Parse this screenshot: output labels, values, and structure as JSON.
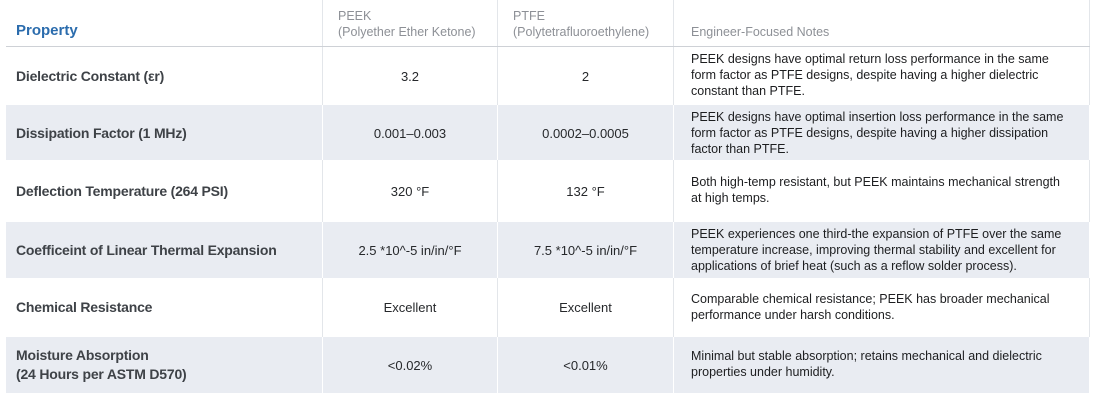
{
  "colors": {
    "accent_blue": "#2b6cad",
    "stripe_background": "#e9ecf2",
    "divider_gray": "#e3e6ea",
    "column_header_gray": "#8d9096"
  },
  "chart_data": {
    "type": "table",
    "columns": [
      {
        "label": "Property",
        "sublabel": ""
      },
      {
        "label": "PEEK",
        "sublabel": "(Polyether Ether Ketone)"
      },
      {
        "label": "PTFE",
        "sublabel": "(Polytetrafluoroethylene)"
      },
      {
        "label": "Engineer-Focused Notes",
        "sublabel": ""
      }
    ],
    "rows": [
      {
        "property": "Dielectric Constant (εr)",
        "peek": "3.2",
        "ptfe": "2",
        "notes": "PEEK designs have optimal return loss performance in the same form factor as PTFE designs, despite having a higher dielectric constant than PTFE."
      },
      {
        "property": "Dissipation Factor (1 MHz)",
        "peek": "0.001–0.003",
        "ptfe": "0.0002–0.0005",
        "notes": "PEEK designs have optimal insertion loss performance in the same form factor as PTFE designs, despite having a higher dissipation factor than PTFE."
      },
      {
        "property": "Deflection Temperature (264 PSI)",
        "peek": "320 °F",
        "ptfe": "132 °F",
        "notes": "Both high-temp resistant, but PEEK maintains mechanical strength at high temps."
      },
      {
        "property": "Coefficeint of Linear Thermal Expansion",
        "peek": "2.5 *10^-5 in/in/°F",
        "ptfe": "7.5 *10^-5 in/in/°F",
        "notes": "PEEK experiences one third-the expansion of PTFE over the same temperature increase, improving thermal stability and excellent for applications of brief heat (such as a reflow solder process)."
      },
      {
        "property": "Chemical Resistance",
        "peek": "Excellent",
        "ptfe": "Excellent",
        "notes": "Comparable chemical resistance; PEEK has broader mechanical performance under harsh conditions."
      },
      {
        "property": "Moisture Absorption\n(24 Hours per ASTM D570)",
        "peek": "<0.02%",
        "ptfe": "<0.01%",
        "notes": "Minimal but stable absorption; retains mechanical and dielectric properties under humidity."
      }
    ]
  }
}
